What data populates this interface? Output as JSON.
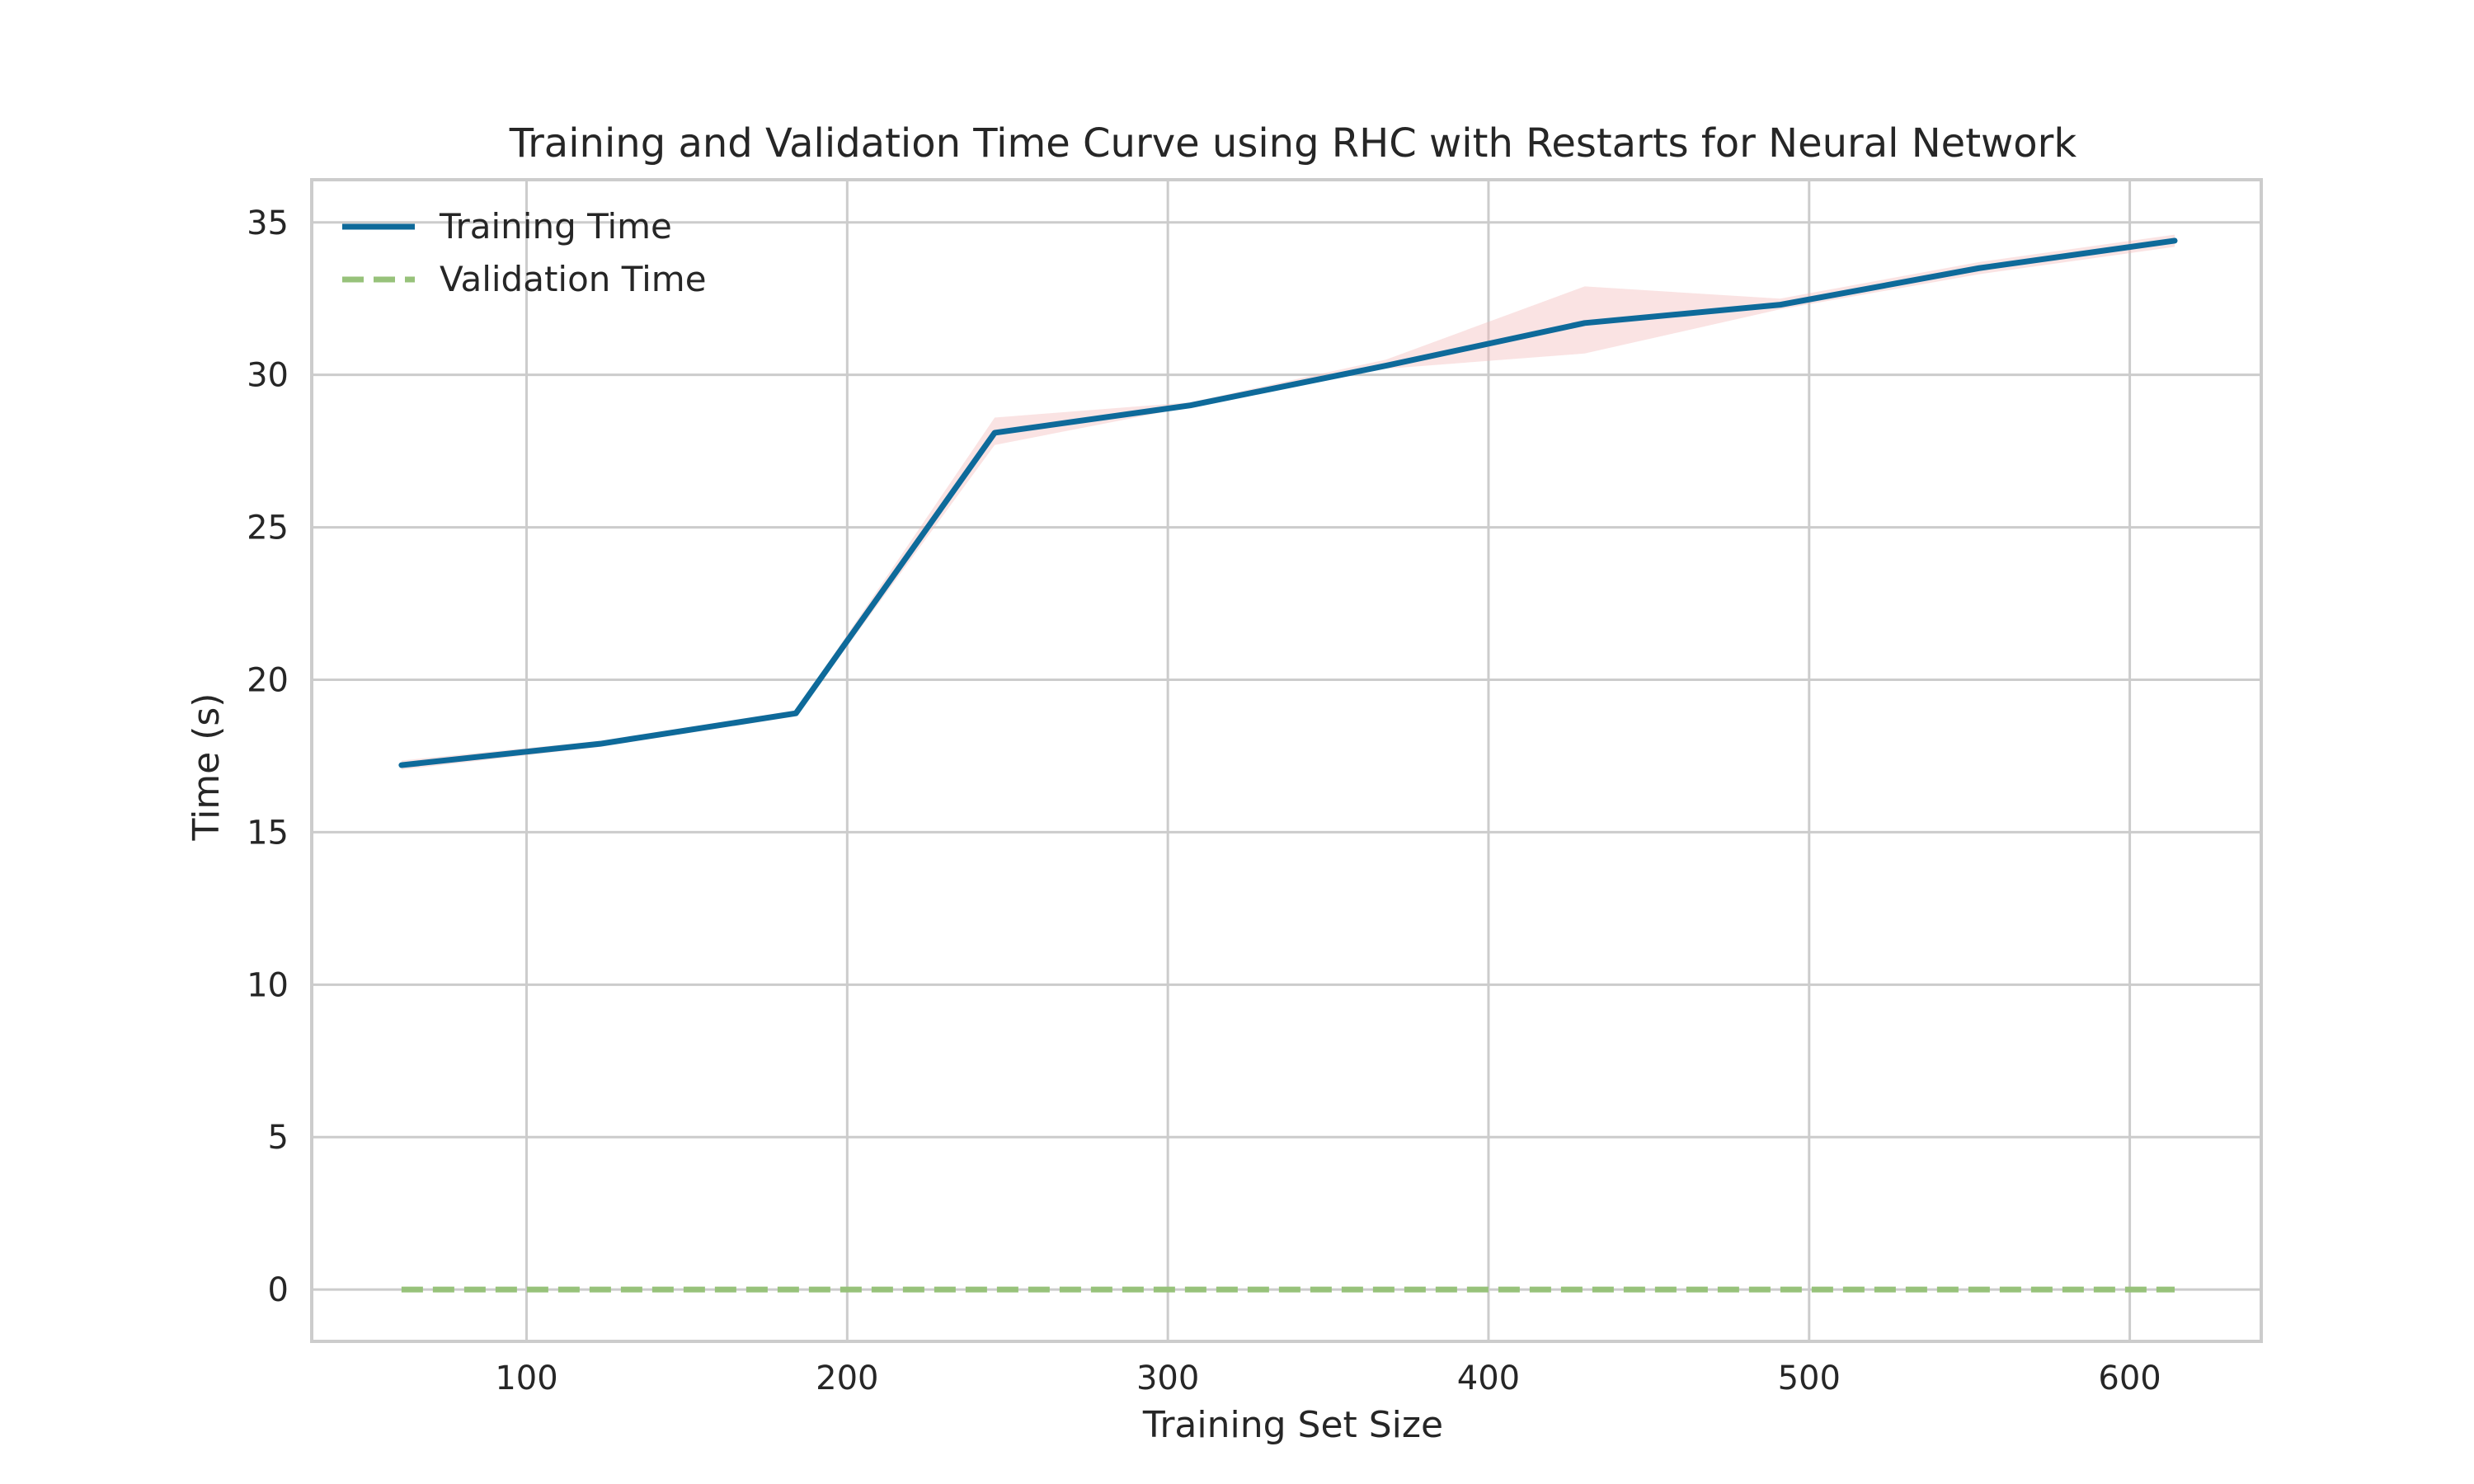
{
  "chart_data": {
    "type": "line",
    "title": "Training and Validation Time Curve using RHC with Restarts for Neural Network",
    "xlabel": "Training Set Size",
    "ylabel": "Time (s)",
    "xlim": [
      33,
      641
    ],
    "ylim": [
      -1.7,
      36.4
    ],
    "xticks": [
      100,
      200,
      300,
      400,
      500,
      600
    ],
    "yticks": [
      0,
      5,
      10,
      15,
      20,
      25,
      30,
      35
    ],
    "grid": true,
    "legend_position": "top-left",
    "x": [
      61,
      123,
      184,
      246,
      307,
      368,
      430,
      491,
      553,
      614
    ],
    "series": [
      {
        "name": "Training Time",
        "color": "#0e6a9a",
        "style": "solid",
        "values": [
          17.2,
          17.9,
          18.9,
          28.1,
          29.0,
          30.3,
          31.7,
          32.3,
          33.5,
          34.4
        ],
        "band_lower": [
          17.05,
          17.8,
          18.8,
          27.7,
          28.95,
          30.2,
          30.7,
          32.15,
          33.3,
          34.2
        ],
        "band_upper": [
          17.35,
          18.0,
          19.0,
          28.6,
          29.1,
          30.5,
          32.9,
          32.5,
          33.7,
          34.6
        ],
        "band_color": "#f2b8b8"
      },
      {
        "name": "Validation Time",
        "color": "#97c27a",
        "style": "dashed",
        "values": [
          0,
          0,
          0,
          0,
          0,
          0,
          0,
          0,
          0,
          0
        ]
      }
    ]
  }
}
